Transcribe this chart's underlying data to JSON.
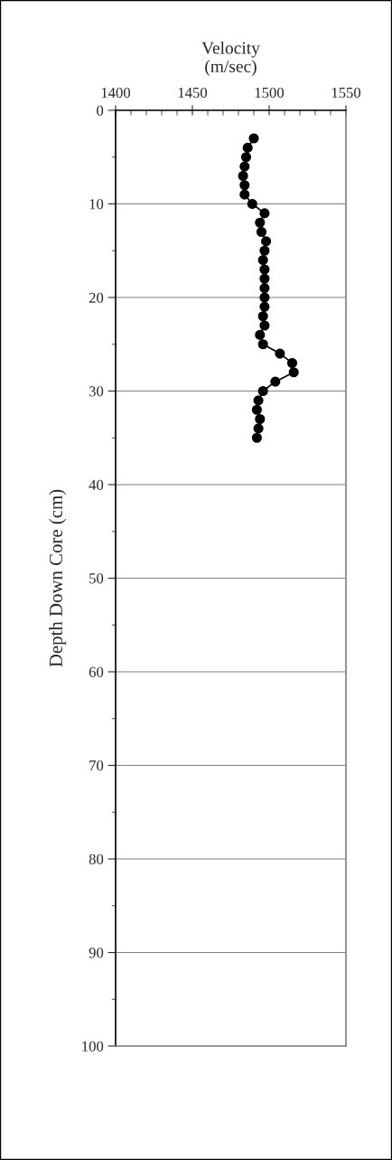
{
  "chart_data": {
    "type": "line",
    "xlabel": "Velocity\n(m/sec)",
    "ylabel": "Depth Down Core (cm)",
    "xlim": [
      1400,
      1550
    ],
    "xticks": [
      1400,
      1450,
      1500,
      1550
    ],
    "ylim": [
      100,
      0
    ],
    "yticks": [
      0,
      10,
      20,
      30,
      40,
      50,
      60,
      70,
      80,
      90,
      100
    ],
    "grid": "y",
    "marker": "circle",
    "line_style": "solid",
    "series": [
      {
        "color": "#000000",
        "x": [
          1490,
          1486,
          1485,
          1484,
          1483,
          1484,
          1484,
          1489,
          1497,
          1494,
          1495,
          1498,
          1497,
          1496,
          1497,
          1497,
          1497,
          1497,
          1497,
          1496,
          1497,
          1494,
          1496,
          1507,
          1515,
          1516,
          1504,
          1496,
          1493,
          1492,
          1494,
          1493,
          1492
        ],
        "values": [
          3,
          4,
          5,
          6,
          7,
          8,
          9,
          10,
          11,
          12,
          13,
          14,
          15,
          16,
          17,
          18,
          19,
          20,
          21,
          22,
          23,
          24,
          25,
          26,
          27,
          28,
          29,
          30,
          31,
          32,
          33,
          34,
          35
        ]
      }
    ]
  }
}
